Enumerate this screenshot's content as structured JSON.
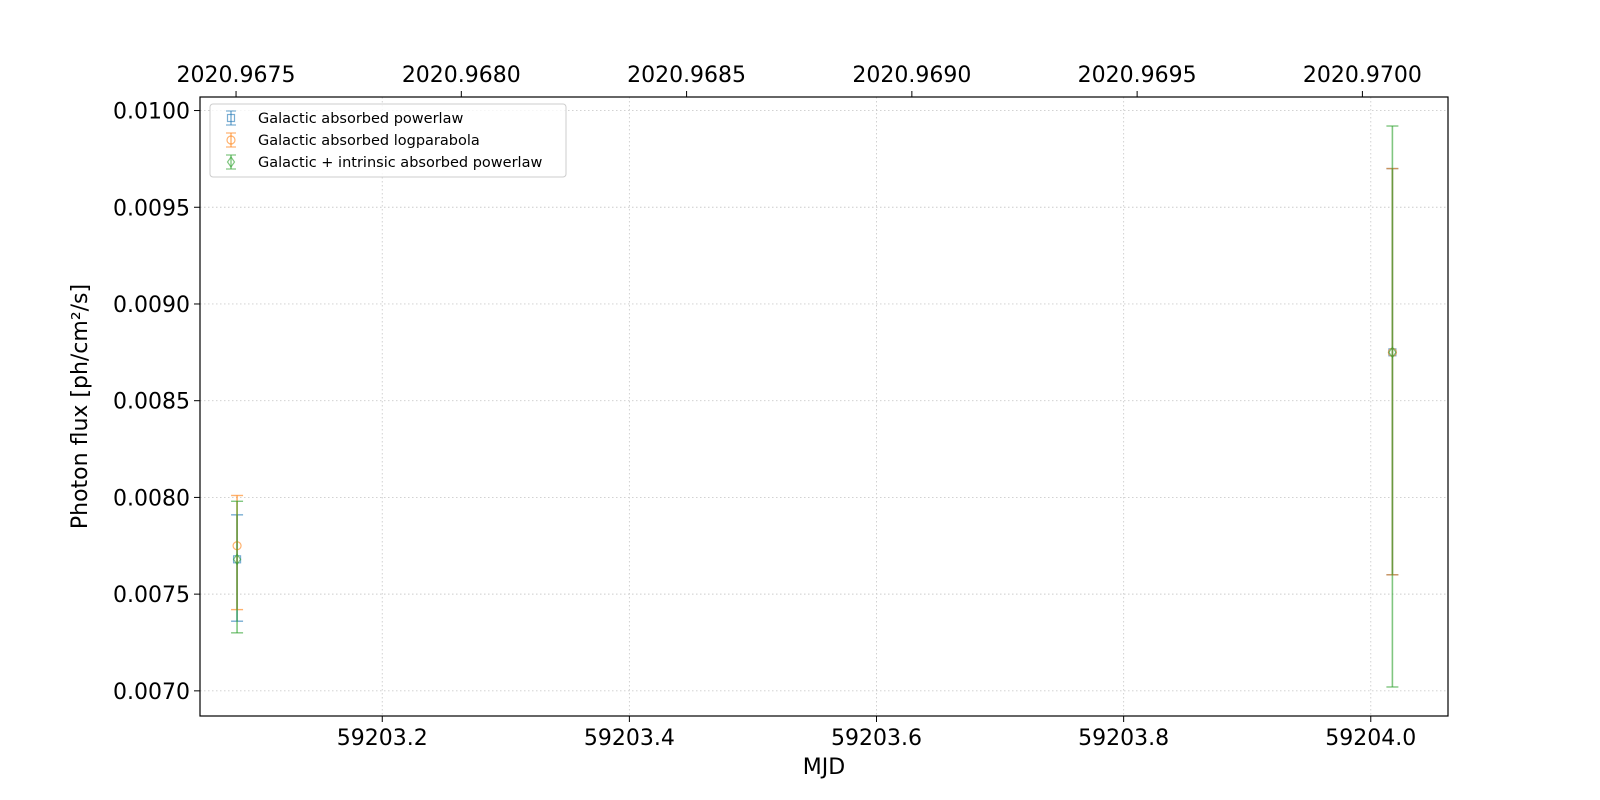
{
  "chart_data": {
    "type": "scatter",
    "title": "",
    "xlabel": "MJD",
    "ylabel": "Photon flux [ph/cm²/s]",
    "xlim": [
      59203.0525,
      59204.0625
    ],
    "ylim": [
      0.00687,
      0.01007
    ],
    "x_ticks": [
      59203.2,
      59203.4,
      59203.6,
      59203.8,
      59204.0
    ],
    "x_tick_labels": [
      "59203.2",
      "59203.4",
      "59203.6",
      "59203.8",
      "59204.0"
    ],
    "y_ticks": [
      0.007,
      0.0075,
      0.008,
      0.0085,
      0.009,
      0.0095,
      0.01
    ],
    "y_tick_labels": [
      "0.0070",
      "0.0075",
      "0.0080",
      "0.0085",
      "0.0090",
      "0.0095",
      "0.0100"
    ],
    "top_axis": {
      "ticks": [
        2020.9675,
        2020.968,
        2020.9685,
        2020.969,
        2020.9695,
        2020.97
      ],
      "tick_labels": [
        "2020.9675",
        "2020.9680",
        "2020.9685",
        "2020.9690",
        "2020.9695",
        "2020.9700"
      ],
      "lim": [
        2020.96742,
        2020.97019
      ]
    },
    "grid": true,
    "legend_position": "top-left",
    "series": [
      {
        "name": "Galactic absorbed powerlaw",
        "color": "#1f77b4",
        "marker": "square",
        "points": [
          {
            "x": 59203.0825,
            "y": 0.00768,
            "ylo": 0.00736,
            "yhi": 0.00791
          },
          {
            "x": 59204.0175,
            "y": 0.00875,
            "ylo": 0.0076,
            "yhi": 0.0097
          }
        ]
      },
      {
        "name": "Galactic absorbed logparabola",
        "color": "#ff7f0e",
        "marker": "circle",
        "points": [
          {
            "x": 59203.0825,
            "y": 0.00775,
            "ylo": 0.00742,
            "yhi": 0.00801
          },
          {
            "x": 59204.0175,
            "y": 0.00875,
            "ylo": 0.0076,
            "yhi": 0.0097
          }
        ]
      },
      {
        "name": "Galactic + intrinsic absorbed powerlaw",
        "color": "#2ca02c",
        "marker": "diamond",
        "points": [
          {
            "x": 59203.0825,
            "y": 0.00768,
            "ylo": 0.0073,
            "yhi": 0.00798
          },
          {
            "x": 59204.0175,
            "y": 0.00875,
            "ylo": 0.00702,
            "yhi": 0.00992
          }
        ]
      }
    ]
  }
}
